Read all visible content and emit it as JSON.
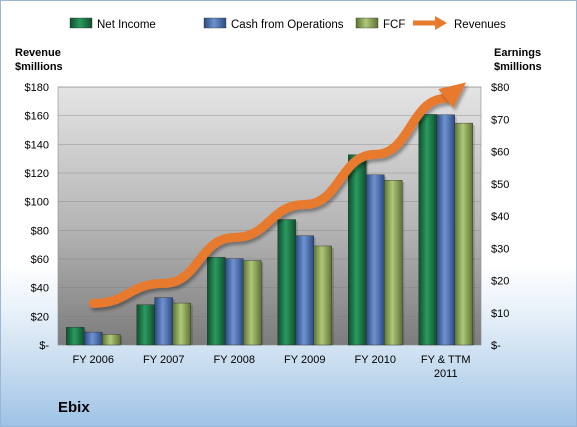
{
  "company_label": "Ebix",
  "chart_data": {
    "type": "bar",
    "categories": [
      [
        "FY 2006"
      ],
      [
        "FY 2007"
      ],
      [
        "FY 2008"
      ],
      [
        "FY 2009"
      ],
      [
        "FY 2010"
      ],
      [
        "FY & TTM",
        "2011"
      ]
    ],
    "series": [
      {
        "name": "Net Income",
        "axis": "right",
        "color": "#1f7a4a",
        "values": [
          5.5,
          12.5,
          27.2,
          38.9,
          59.0,
          71.5
        ]
      },
      {
        "name": "Cash from Operations",
        "axis": "right",
        "color": "#4a6fb0",
        "values": [
          4.0,
          14.7,
          26.8,
          33.9,
          52.8,
          71.4
        ]
      },
      {
        "name": "FCF",
        "axis": "right",
        "color": "#8faa55",
        "values": [
          3.3,
          13.0,
          26.2,
          30.7,
          51.1,
          68.8
        ]
      }
    ],
    "line_series": {
      "name": "Revenues",
      "axis": "left",
      "color": "#e87a2e",
      "values": [
        29,
        43,
        75,
        98,
        133,
        172
      ]
    },
    "left_axis": {
      "label": [
        "Revenue",
        "$millions"
      ],
      "ylim": [
        0,
        180
      ],
      "ticks": [
        "$-",
        "$20",
        "$40",
        "$60",
        "$80",
        "$100",
        "$120",
        "$140",
        "$160",
        "$180"
      ]
    },
    "right_axis": {
      "label": [
        "Earnings",
        "$millions"
      ],
      "ylim": [
        0,
        80
      ],
      "ticks": [
        "$-",
        "$10",
        "$20",
        "$30",
        "$40",
        "$50",
        "$60",
        "$70",
        "$80"
      ]
    },
    "legend": [
      "Net Income",
      "Cash from Operations",
      "FCF",
      "Revenues"
    ],
    "legend_position": "top",
    "grid": true
  }
}
